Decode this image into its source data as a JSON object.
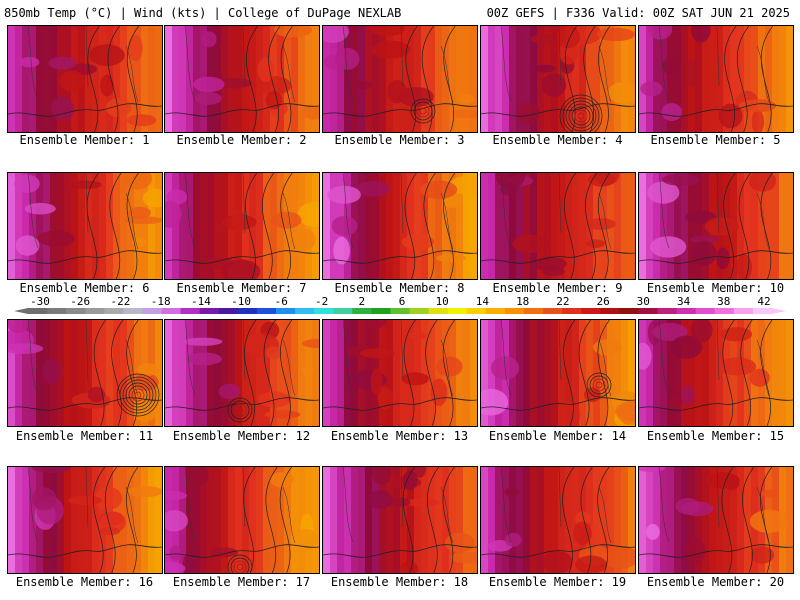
{
  "header": {
    "left_title": "850mb Temp (°C) | Wind (kts) | College of DuPage NEXLAB",
    "right_title": "00Z GEFS | F336 Valid: 00Z SAT JUN 21 2025"
  },
  "chart_data": {
    "type": "heatmap",
    "title": "850mb Temp (°C) | Wind (kts)",
    "panels": [
      {
        "label": "Ensemble Member: 1"
      },
      {
        "label": "Ensemble Member: 2"
      },
      {
        "label": "Ensemble Member: 3"
      },
      {
        "label": "Ensemble Member: 4"
      },
      {
        "label": "Ensemble Member: 5"
      },
      {
        "label": "Ensemble Member: 6"
      },
      {
        "label": "Ensemble Member: 7"
      },
      {
        "label": "Ensemble Member: 8"
      },
      {
        "label": "Ensemble Member: 9"
      },
      {
        "label": "Ensemble Member: 10"
      },
      {
        "label": "Ensemble Member: 11"
      },
      {
        "label": "Ensemble Member: 12"
      },
      {
        "label": "Ensemble Member: 13"
      },
      {
        "label": "Ensemble Member: 14"
      },
      {
        "label": "Ensemble Member: 15"
      },
      {
        "label": "Ensemble Member: 16"
      },
      {
        "label": "Ensemble Member: 17"
      },
      {
        "label": "Ensemble Member: 18"
      },
      {
        "label": "Ensemble Member: 19"
      },
      {
        "label": "Ensemble Member: 20"
      }
    ],
    "colorbar": {
      "tick_labels": [
        "-30",
        "-26",
        "-22",
        "-18",
        "-14",
        "-10",
        "-6",
        "-2",
        "2",
        "6",
        "10",
        "14",
        "18",
        "22",
        "26",
        "30",
        "34",
        "38",
        "42"
      ],
      "colors": [
        "#6e6e6e",
        "#7a7a7a",
        "#8a8a8a",
        "#9a9a9a",
        "#aaaaaa",
        "#b8b8c8",
        "#c0a0e0",
        "#d070e0",
        "#b030c8",
        "#7a1aa8",
        "#4a1aa0",
        "#2030c0",
        "#2050e0",
        "#2090f0",
        "#30c0f0",
        "#30e0e0",
        "#40d0a0",
        "#30b040",
        "#20a020",
        "#60c030",
        "#a0d020",
        "#e0e010",
        "#f0f000",
        "#f8d000",
        "#f8b000",
        "#f89000",
        "#f07010",
        "#e85020",
        "#e03020",
        "#d01818",
        "#b01010",
        "#901010",
        "#a01040",
        "#c02080",
        "#d030b0",
        "#e050d0",
        "#f070e0",
        "#f8a0f0",
        "#f8c8f8"
      ]
    }
  }
}
